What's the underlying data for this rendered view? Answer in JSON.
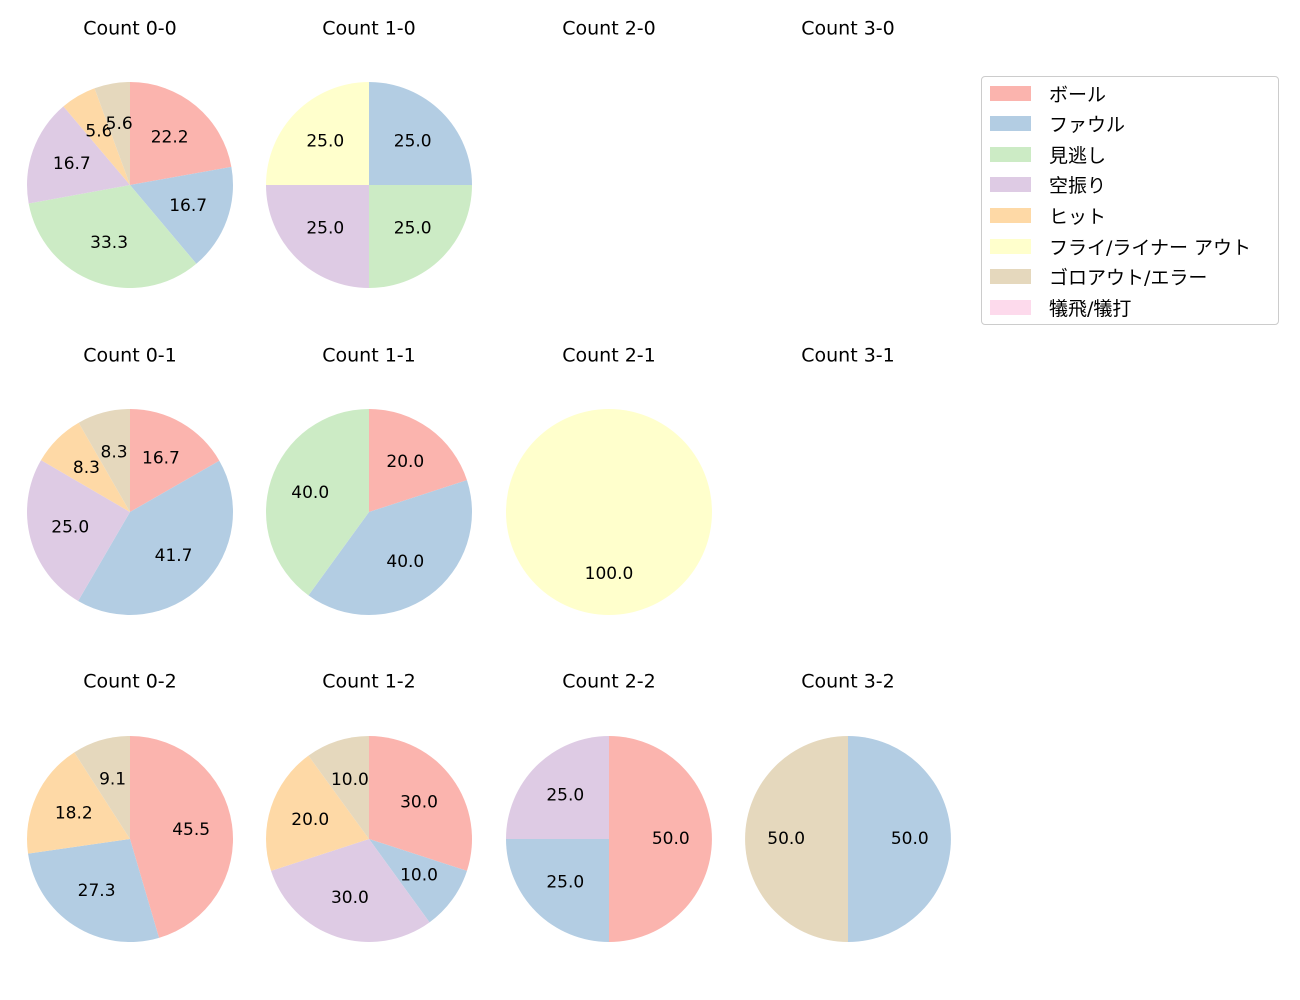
{
  "chart_data": {
    "type": "pie",
    "legend": {
      "placement": "top-right",
      "entries": [
        {
          "label": "ボール",
          "color": "#fbb4ae"
        },
        {
          "label": "ファウル",
          "color": "#b3cde3"
        },
        {
          "label": "見逃し",
          "color": "#ccebc5"
        },
        {
          "label": "空振り",
          "color": "#decbe4"
        },
        {
          "label": "ヒット",
          "color": "#fed9a6"
        },
        {
          "label": "フライ/ライナー アウト",
          "color": "#ffffcc"
        },
        {
          "label": "ゴロアウト/エラー",
          "color": "#e5d8bd"
        },
        {
          "label": "犠飛/犠打",
          "color": "#fddaec"
        }
      ]
    },
    "panels": [
      {
        "title": "Count 0-0",
        "slices": [
          {
            "category": "ボール",
            "value": 22.2
          },
          {
            "category": "ファウル",
            "value": 16.7
          },
          {
            "category": "見逃し",
            "value": 33.3
          },
          {
            "category": "空振り",
            "value": 16.7
          },
          {
            "category": "ヒット",
            "value": 5.6
          },
          {
            "category": "ゴロアウト/エラー",
            "value": 5.6
          }
        ]
      },
      {
        "title": "Count 1-0",
        "slices": [
          {
            "category": "ファウル",
            "value": 25.0
          },
          {
            "category": "見逃し",
            "value": 25.0
          },
          {
            "category": "空振り",
            "value": 25.0
          },
          {
            "category": "フライ/ライナー アウト",
            "value": 25.0
          }
        ]
      },
      {
        "title": "Count 2-0",
        "slices": []
      },
      {
        "title": "Count 3-0",
        "slices": []
      },
      {
        "title": "Count 0-1",
        "slices": [
          {
            "category": "ボール",
            "value": 16.7
          },
          {
            "category": "ファウル",
            "value": 41.7
          },
          {
            "category": "空振り",
            "value": 25.0
          },
          {
            "category": "ヒット",
            "value": 8.3
          },
          {
            "category": "ゴロアウト/エラー",
            "value": 8.3
          }
        ]
      },
      {
        "title": "Count 1-1",
        "slices": [
          {
            "category": "ボール",
            "value": 20.0
          },
          {
            "category": "ファウル",
            "value": 40.0
          },
          {
            "category": "見逃し",
            "value": 40.0
          }
        ]
      },
      {
        "title": "Count 2-1",
        "slices": [
          {
            "category": "フライ/ライナー アウト",
            "value": 100.0
          }
        ]
      },
      {
        "title": "Count 3-1",
        "slices": []
      },
      {
        "title": "Count 0-2",
        "slices": [
          {
            "category": "ボール",
            "value": 45.5
          },
          {
            "category": "ファウル",
            "value": 27.3
          },
          {
            "category": "ヒット",
            "value": 18.2
          },
          {
            "category": "ゴロアウト/エラー",
            "value": 9.1
          }
        ]
      },
      {
        "title": "Count 1-2",
        "slices": [
          {
            "category": "ボール",
            "value": 30.0
          },
          {
            "category": "ファウル",
            "value": 10.0
          },
          {
            "category": "空振り",
            "value": 30.0
          },
          {
            "category": "ヒット",
            "value": 20.0
          },
          {
            "category": "ゴロアウト/エラー",
            "value": 10.0
          }
        ]
      },
      {
        "title": "Count 2-2",
        "slices": [
          {
            "category": "ボール",
            "value": 50.0
          },
          {
            "category": "ファウル",
            "value": 25.0
          },
          {
            "category": "空振り",
            "value": 25.0
          }
        ]
      },
      {
        "title": "Count 3-2",
        "slices": [
          {
            "category": "ファウル",
            "value": 50.0
          },
          {
            "category": "ゴロアウト/エラー",
            "value": 50.0
          }
        ]
      }
    ]
  }
}
